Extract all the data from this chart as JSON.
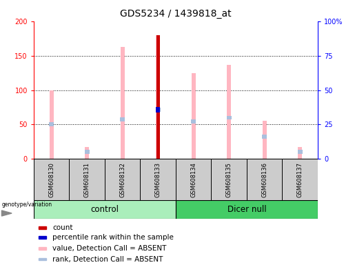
{
  "title": "GDS5234 / 1439818_at",
  "samples": [
    "GSM608130",
    "GSM608131",
    "GSM608132",
    "GSM608133",
    "GSM608134",
    "GSM608135",
    "GSM608136",
    "GSM608137"
  ],
  "pink_bar_values": [
    100,
    17,
    163,
    180,
    125,
    137,
    55,
    17
  ],
  "blue_rank_values": [
    50,
    10,
    57,
    72,
    54,
    60,
    32,
    10
  ],
  "count_bar_sample": 3,
  "count_bar_value": 180,
  "percentile_rank_value": 72,
  "pink_color": "#FFB6C1",
  "light_blue_color": "#AABFDD",
  "dark_red_color": "#CC0000",
  "blue_color": "#0000CC",
  "ylim_left": [
    0,
    200
  ],
  "ylim_right": [
    0,
    100
  ],
  "yticks_left": [
    0,
    50,
    100,
    150,
    200
  ],
  "yticks_right": [
    0,
    25,
    50,
    75,
    100
  ],
  "yticklabels_right": [
    "0",
    "25",
    "50",
    "75",
    "100%"
  ],
  "grid_values": [
    50,
    100,
    150
  ],
  "group_bg_color": "#CCCCCC",
  "group_control_color": "#AAEEBB",
  "group_dicernull_color": "#44CC66",
  "legend_items": [
    {
      "color": "#CC0000",
      "label": "count"
    },
    {
      "color": "#0000CC",
      "label": "percentile rank within the sample"
    },
    {
      "color": "#FFB6C1",
      "label": "value, Detection Call = ABSENT"
    },
    {
      "color": "#AABFDD",
      "label": "rank, Detection Call = ABSENT"
    }
  ]
}
